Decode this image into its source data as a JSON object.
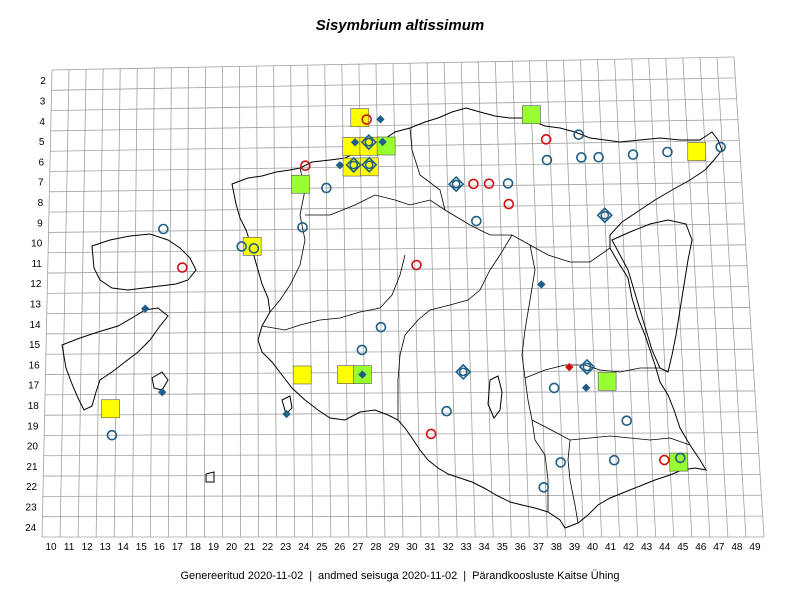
{
  "title": "Sisymbrium altissimum",
  "footer": {
    "generated": "Genereeritud 2020-11-02",
    "data_state": "andmed seisuga 2020-11-02",
    "org": "Pärandkoosluste Kaitse Ühing"
  },
  "colors": {
    "grid": "#a0a0a0",
    "outline": "#000000",
    "yellow_square": "#ffff00",
    "green_square": "#99ff33",
    "blue_symbol": "#1f5f85",
    "red_symbol": "#d01010"
  },
  "grid": {
    "x_labels": [
      "10",
      "11",
      "12",
      "13",
      "14",
      "15",
      "16",
      "17",
      "18",
      "19",
      "20",
      "21",
      "22",
      "23",
      "24",
      "25",
      "26",
      "27",
      "28",
      "29",
      "30",
      "31",
      "32",
      "33",
      "34",
      "35",
      "36",
      "37",
      "38",
      "39",
      "40",
      "41",
      "42",
      "43",
      "44",
      "45",
      "46",
      "47",
      "48",
      "49"
    ],
    "y_labels": [
      "2",
      "3",
      "4",
      "5",
      "6",
      "7",
      "8",
      "9",
      "10",
      "11",
      "12",
      "13",
      "14",
      "15",
      "16",
      "17",
      "18",
      "19",
      "20",
      "21",
      "22",
      "23",
      "24"
    ]
  },
  "legend_symbols": {
    "yellow_square": "yellow-square",
    "green_square": "green-square",
    "blue_circle": "blue-ring",
    "red_circle": "red-ring",
    "blue_diamond": "blue-diamond",
    "red_diamond": "red-diamond",
    "blue_ring_diamond": "blue-ring-diamond"
  },
  "markers": [
    {
      "type": "yellow_square",
      "x": 27.5,
      "y": 4.1
    },
    {
      "type": "yellow_square",
      "x": 27,
      "y": 5.5
    },
    {
      "type": "yellow_square",
      "x": 28,
      "y": 5.5
    },
    {
      "type": "green_square",
      "x": 29,
      "y": 5.5
    },
    {
      "type": "yellow_square",
      "x": 27,
      "y": 6.5
    },
    {
      "type": "yellow_square",
      "x": 28,
      "y": 6.5
    },
    {
      "type": "green_square",
      "x": 37.5,
      "y": 4.1
    },
    {
      "type": "yellow_square",
      "x": 47,
      "y": 6
    },
    {
      "type": "green_square",
      "x": 24,
      "y": 7.3
    },
    {
      "type": "yellow_square",
      "x": 21.2,
      "y": 10.3
    },
    {
      "type": "yellow_square",
      "x": 24,
      "y": 16.6
    },
    {
      "type": "yellow_square",
      "x": 26.5,
      "y": 16.6
    },
    {
      "type": "green_square",
      "x": 27.4,
      "y": 16.6
    },
    {
      "type": "green_square",
      "x": 41.2,
      "y": 17
    },
    {
      "type": "yellow_square",
      "x": 13.2,
      "y": 18.2
    },
    {
      "type": "green_square",
      "x": 45,
      "y": 20.9
    },
    {
      "type": "red_circle",
      "x": 27.9,
      "y": 4.2
    },
    {
      "type": "blue_diamond",
      "x": 28.7,
      "y": 4.2
    },
    {
      "type": "blue_diamond",
      "x": 27.2,
      "y": 5.3
    },
    {
      "type": "blue_ring_diamond",
      "x": 28,
      "y": 5.3
    },
    {
      "type": "blue_diamond",
      "x": 28.8,
      "y": 5.3
    },
    {
      "type": "blue_ring_diamond",
      "x": 27.1,
      "y": 6.4
    },
    {
      "type": "blue_ring_diamond",
      "x": 28,
      "y": 6.4
    },
    {
      "type": "blue_diamond",
      "x": 26.3,
      "y": 6.4
    },
    {
      "type": "red_circle",
      "x": 24.3,
      "y": 6.4
    },
    {
      "type": "blue_circle",
      "x": 25.5,
      "y": 7.5
    },
    {
      "type": "blue_ring_diamond",
      "x": 33,
      "y": 7.4
    },
    {
      "type": "red_circle",
      "x": 34,
      "y": 7.4
    },
    {
      "type": "red_circle",
      "x": 34.9,
      "y": 7.4
    },
    {
      "type": "blue_circle",
      "x": 36,
      "y": 7.4
    },
    {
      "type": "red_circle",
      "x": 36,
      "y": 8.4
    },
    {
      "type": "blue_circle",
      "x": 24.1,
      "y": 9.4
    },
    {
      "type": "blue_circle",
      "x": 34.1,
      "y": 9.2
    },
    {
      "type": "blue_circle",
      "x": 16.1,
      "y": 9.4
    },
    {
      "type": "blue_circle",
      "x": 20.6,
      "y": 10.3
    },
    {
      "type": "blue_circle",
      "x": 21.3,
      "y": 10.4
    },
    {
      "type": "red_circle",
      "x": 17.2,
      "y": 11.3
    },
    {
      "type": "red_circle",
      "x": 30.6,
      "y": 11.3
    },
    {
      "type": "blue_diamond",
      "x": 37.7,
      "y": 12.3
    },
    {
      "type": "blue_diamond",
      "x": 15.1,
      "y": 13.3
    },
    {
      "type": "blue_circle",
      "x": 28.5,
      "y": 14.3
    },
    {
      "type": "blue_circle",
      "x": 27.4,
      "y": 15.4
    },
    {
      "type": "blue_ring_diamond",
      "x": 33.1,
      "y": 16.5
    },
    {
      "type": "blue_diamond",
      "x": 27.4,
      "y": 16.6
    },
    {
      "type": "red_diamond",
      "x": 39.1,
      "y": 16.3
    },
    {
      "type": "blue_ring_diamond",
      "x": 40.1,
      "y": 16.3
    },
    {
      "type": "blue_diamond",
      "x": 40,
      "y": 17.3
    },
    {
      "type": "blue_circle",
      "x": 38.2,
      "y": 17.3
    },
    {
      "type": "blue_diamond",
      "x": 16.1,
      "y": 17.4
    },
    {
      "type": "blue_circle",
      "x": 32.1,
      "y": 18.4
    },
    {
      "type": "blue_diamond",
      "x": 23.1,
      "y": 18.5
    },
    {
      "type": "blue_circle",
      "x": 42.2,
      "y": 18.9
    },
    {
      "type": "red_circle",
      "x": 31.2,
      "y": 19.5
    },
    {
      "type": "blue_circle",
      "x": 13.3,
      "y": 19.5
    },
    {
      "type": "blue_circle",
      "x": 38.4,
      "y": 20.9
    },
    {
      "type": "blue_circle",
      "x": 41.4,
      "y": 20.8
    },
    {
      "type": "red_circle",
      "x": 44.2,
      "y": 20.8
    },
    {
      "type": "blue_circle",
      "x": 45.1,
      "y": 20.7
    },
    {
      "type": "blue_circle",
      "x": 37.4,
      "y": 22.1
    },
    {
      "type": "blue_circle",
      "x": 40.2,
      "y": 5.1
    },
    {
      "type": "red_circle",
      "x": 38.3,
      "y": 5.3
    },
    {
      "type": "blue_circle",
      "x": 38.3,
      "y": 6.3
    },
    {
      "type": "blue_circle",
      "x": 40.3,
      "y": 6.2
    },
    {
      "type": "blue_circle",
      "x": 41.3,
      "y": 6.2
    },
    {
      "type": "blue_circle",
      "x": 43.3,
      "y": 6.1
    },
    {
      "type": "blue_circle",
      "x": 45.3,
      "y": 6
    },
    {
      "type": "blue_circle",
      "x": 48.4,
      "y": 5.8
    },
    {
      "type": "blue_ring_diamond",
      "x": 41.5,
      "y": 9
    }
  ]
}
